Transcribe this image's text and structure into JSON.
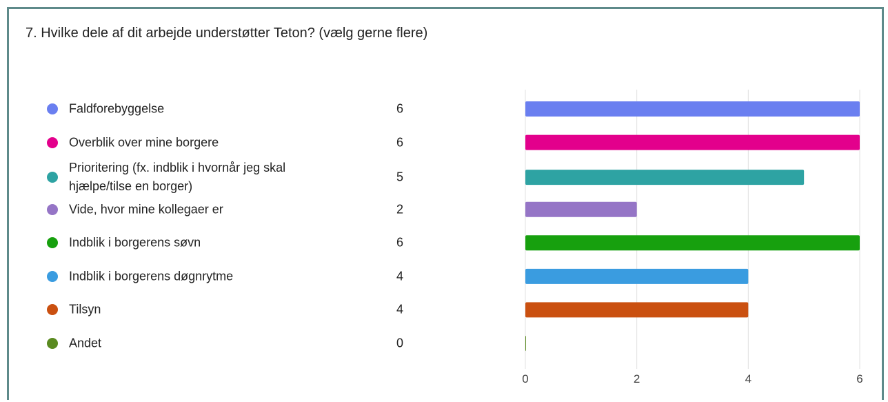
{
  "chart_data": {
    "type": "bar",
    "orientation": "horizontal",
    "title": "7. Hvilke dele af dit arbejde understøtter Teton? (vælg gerne flere)",
    "categories": [
      "Faldforebyggelse",
      "Overblik over mine borgere",
      "Prioritering (fx. indblik i hvornår jeg skal hjælpe/tilse en borger)",
      "Vide, hvor mine kollegaer er",
      "Indblik i borgerens søvn",
      "Indblik i borgerens døgnrytme",
      "Tilsyn",
      "Andet"
    ],
    "values": [
      6,
      6,
      5,
      2,
      6,
      4,
      4,
      0
    ],
    "colors": [
      "#6a7ff0",
      "#e3008c",
      "#2ea3a3",
      "#9575c6",
      "#17a00e",
      "#3a9ce0",
      "#ca5010",
      "#5a8a20"
    ],
    "xlim": [
      0,
      6
    ],
    "xticks": [
      0,
      2,
      4,
      6
    ],
    "grid": true
  }
}
